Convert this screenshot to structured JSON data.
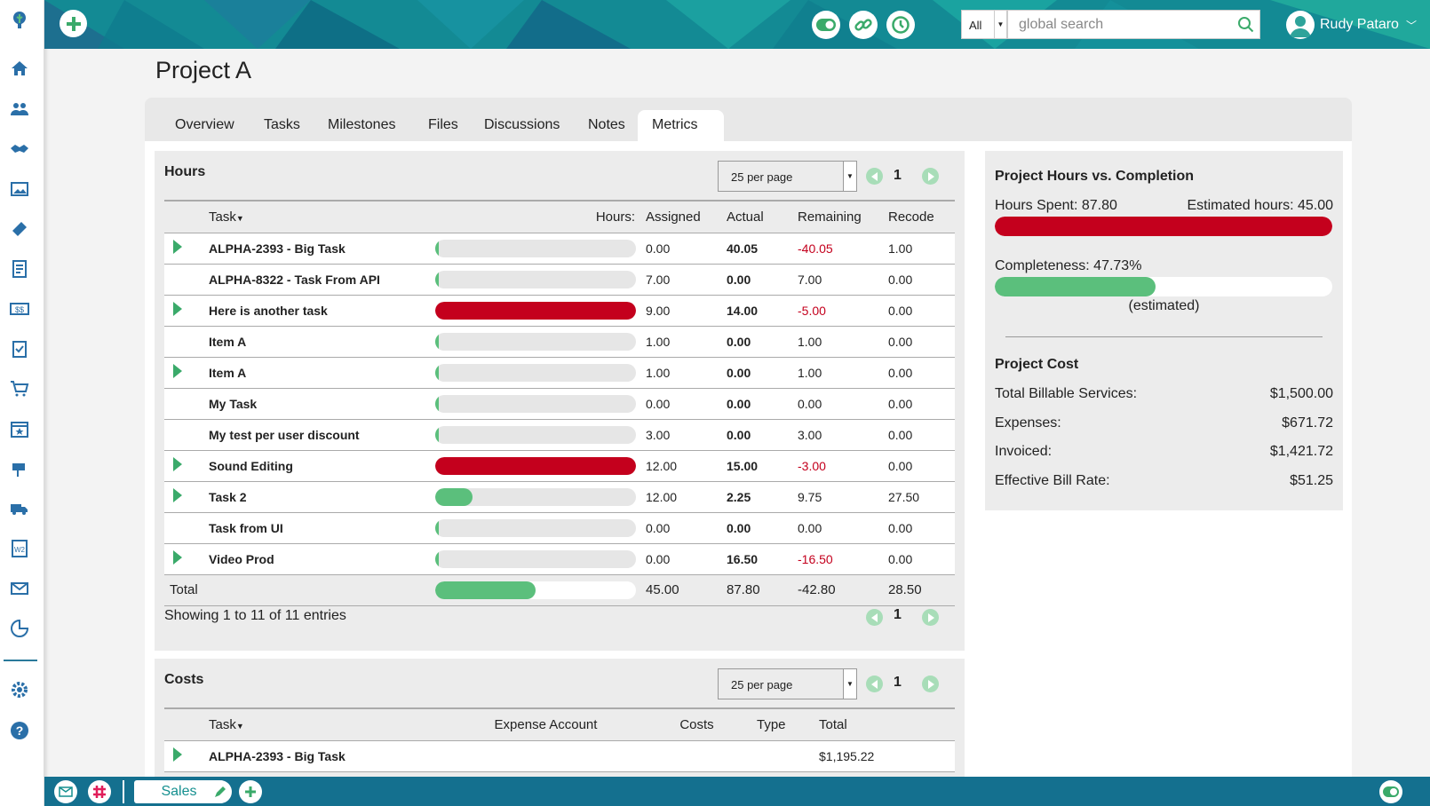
{
  "topbar": {
    "search_scope": "All",
    "search_placeholder": "global search",
    "user_name": "Rudy Pataro"
  },
  "page": {
    "title": "Project A"
  },
  "tabs": [
    {
      "label": "Overview"
    },
    {
      "label": "Tasks"
    },
    {
      "label": "Milestones"
    },
    {
      "label": "Files"
    },
    {
      "label": "Discussions"
    },
    {
      "label": "Notes"
    },
    {
      "label": "Metrics"
    }
  ],
  "active_tab": "Metrics",
  "hours": {
    "title": "Hours",
    "per_page": "25 per page",
    "page": "1",
    "columns": {
      "task": "Task",
      "hours": "Hours:",
      "assigned": "Assigned",
      "actual": "Actual",
      "remaining": "Remaining",
      "recode": "Recode"
    },
    "rows": [
      {
        "task": "ALPHA-2393 - Big Task",
        "expand": true,
        "progress": 0,
        "over": false,
        "assigned": "0.00",
        "actual": "40.05",
        "remaining": "-40.05",
        "recode": "1.00"
      },
      {
        "task": "ALPHA-8322 - Task From API",
        "expand": false,
        "progress": 0,
        "over": false,
        "assigned": "7.00",
        "actual": "0.00",
        "remaining": "7.00",
        "recode": "0.00"
      },
      {
        "task": "Here is another task",
        "expand": true,
        "progress": 1,
        "over": true,
        "assigned": "9.00",
        "actual": "14.00",
        "remaining": "-5.00",
        "recode": "0.00"
      },
      {
        "task": "Item A",
        "expand": false,
        "progress": 0,
        "over": false,
        "assigned": "1.00",
        "actual": "0.00",
        "remaining": "1.00",
        "recode": "0.00"
      },
      {
        "task": "Item A",
        "expand": true,
        "progress": 0,
        "over": false,
        "assigned": "1.00",
        "actual": "0.00",
        "remaining": "1.00",
        "recode": "0.00"
      },
      {
        "task": "My Task",
        "expand": false,
        "progress": 0,
        "over": false,
        "assigned": "0.00",
        "actual": "0.00",
        "remaining": "0.00",
        "recode": "0.00"
      },
      {
        "task": "My test per user discount",
        "expand": false,
        "progress": 0,
        "over": false,
        "assigned": "3.00",
        "actual": "0.00",
        "remaining": "3.00",
        "recode": "0.00"
      },
      {
        "task": "Sound Editing",
        "expand": true,
        "progress": 1,
        "over": true,
        "assigned": "12.00",
        "actual": "15.00",
        "remaining": "-3.00",
        "recode": "0.00"
      },
      {
        "task": "Task 2",
        "expand": true,
        "progress": 0.1875,
        "over": false,
        "assigned": "12.00",
        "actual": "2.25",
        "remaining": "9.75",
        "recode": "27.50"
      },
      {
        "task": "Task from UI",
        "expand": false,
        "progress": 0,
        "over": false,
        "assigned": "0.00",
        "actual": "0.00",
        "remaining": "0.00",
        "recode": "0.00"
      },
      {
        "task": "Video Prod",
        "expand": true,
        "progress": 0,
        "over": false,
        "assigned": "0.00",
        "actual": "16.50",
        "remaining": "-16.50",
        "recode": "0.00"
      }
    ],
    "total": {
      "label": "Total",
      "progress": 0.5,
      "assigned": "45.00",
      "actual": "87.80",
      "remaining": "-42.80",
      "recode": "28.50"
    },
    "showing": "Showing 1 to 11 of 11 entries"
  },
  "costs": {
    "title": "Costs",
    "per_page": "25 per page",
    "page": "1",
    "columns": {
      "task": "Task",
      "expense_account": "Expense Account",
      "costs": "Costs",
      "type": "Type",
      "total": "Total"
    },
    "rows": [
      {
        "task": "ALPHA-2393 - Big Task",
        "expense_account": "",
        "costs": "",
        "type": "",
        "total": "$1,195.22"
      }
    ]
  },
  "summary": {
    "title": "Project Hours vs. Completion",
    "hours_spent": "Hours Spent: 87.80",
    "estimated_hours": "Estimated hours: 45.00",
    "hours_progress": 1,
    "completeness": "Completeness: 47.73%",
    "completeness_progress": 0.4773,
    "estimated_note": "(estimated)",
    "cost_title": "Project Cost",
    "cost_items": [
      {
        "label": "Total Billable Services:",
        "value": "$1,500.00"
      },
      {
        "label": "Expenses:",
        "value": "$671.72"
      },
      {
        "label": "Invoiced:",
        "value": "$1,421.72"
      },
      {
        "label": "Effective Bill Rate:",
        "value": "$51.25"
      }
    ]
  },
  "bottombar": {
    "sales_label": "Sales"
  },
  "colors": {
    "brand": "#148f8f",
    "over": "#c4001d",
    "good": "#5bbf7c",
    "bottom": "#14708f"
  }
}
